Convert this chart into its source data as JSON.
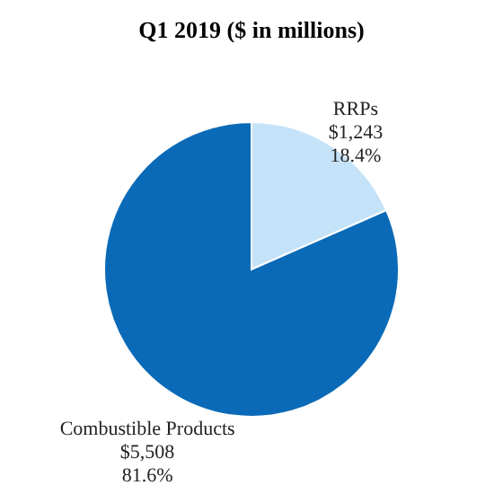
{
  "chart_data": {
    "type": "pie",
    "title": "Q1 2019 ($ in millions)",
    "categories": [
      "RRPs",
      "Combustible Products"
    ],
    "values": [
      1243,
      5508
    ],
    "colors": [
      "#c5e3f8",
      "#0a6ab8"
    ],
    "value_labels": [
      "$1,243\n18.4%",
      "$5,508\n81.6%"
    ],
    "legend": false
  }
}
